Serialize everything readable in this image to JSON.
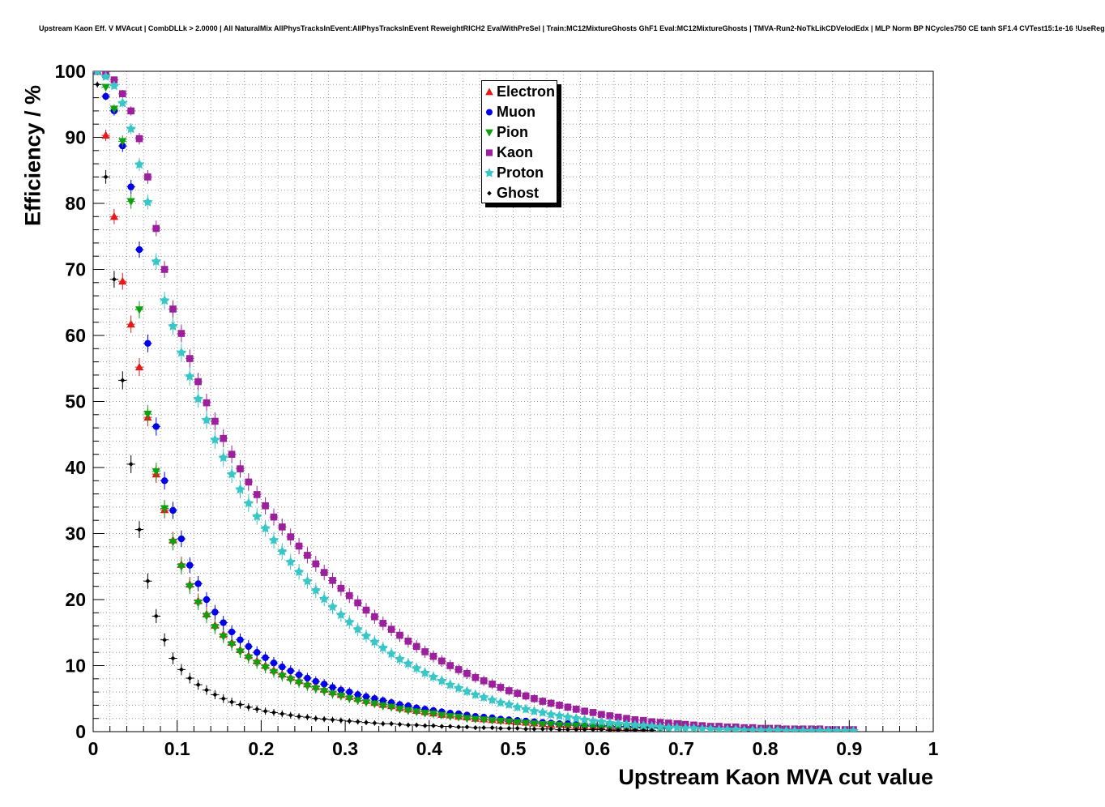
{
  "chart_data": {
    "type": "scatter",
    "title": "Upstream Kaon Eff. V MVAcut | CombDLLk > 2.0000 | All NaturalMix AllPhysTracksInEvent:AllPhysTracksInEvent ReweightRICH2 EvalWithPreSel | Train:MC12MixtureGhosts GhF1 Eval:MC12MixtureGhosts | TMVA-Run2-NoTkLikCDVelodEdx | MLP Norm BP NCycles750 CE tanh SF1.4 CVTest15:1e-16 !UseReg",
    "xlabel": "Upstream Kaon MVA cut value",
    "ylabel": "Efficiency / %",
    "xlim": [
      0,
      1
    ],
    "ylim": [
      0,
      100
    ],
    "grid": true,
    "grid_style": "dotted",
    "legend_position": "top-center",
    "x_tick_values": [
      0,
      0.1,
      0.2,
      0.3,
      0.4,
      0.5,
      0.6,
      0.7,
      0.8,
      0.9,
      1
    ],
    "x_tick_labels": [
      "0",
      "0.1",
      "0.2",
      "0.3",
      "0.4",
      "0.5",
      "0.6",
      "0.7",
      "0.8",
      "0.9",
      "1"
    ],
    "y_tick_values": [
      0,
      10,
      20,
      30,
      40,
      50,
      60,
      70,
      80,
      90,
      100
    ],
    "y_tick_labels": [
      "0",
      "10",
      "20",
      "30",
      "40",
      "50",
      "60",
      "70",
      "80",
      "90",
      "100"
    ],
    "x_grid_step": 0.02,
    "y_grid_step": 2,
    "x_start": 0.005,
    "x_step": 0.01,
    "series": [
      {
        "name": "Electron",
        "color": "#e41a1a",
        "marker": "triangle-up",
        "values": [
          100.0,
          90.3,
          78.0,
          68.2,
          61.7,
          55.2,
          47.6,
          39.0,
          33.6,
          29.0,
          25.3,
          22.3,
          19.8,
          17.8,
          16.1,
          14.7,
          13.5,
          12.4,
          11.5,
          10.7,
          10.0,
          9.3,
          8.7,
          8.2,
          7.7,
          7.2,
          6.8,
          6.4,
          6.0,
          5.6,
          5.3,
          5.0,
          4.7,
          4.4,
          4.1,
          3.9,
          3.6,
          3.4,
          3.2,
          3.0,
          2.8,
          2.6,
          2.5,
          2.3,
          2.2,
          2.0,
          1.9,
          1.8,
          1.7,
          1.6,
          1.5,
          1.4,
          1.3,
          1.2,
          1.1,
          1.1,
          1.0,
          0.9,
          0.9,
          0.8,
          0.8,
          0.7,
          0.7,
          0.6,
          0.6,
          0.6
        ]
      },
      {
        "name": "Muon",
        "color": "#0000e6",
        "marker": "circle",
        "values": [
          100.0,
          96.2,
          94.0,
          88.7,
          82.5,
          73.0,
          58.8,
          46.2,
          38.0,
          33.5,
          29.2,
          25.2,
          22.4,
          20.0,
          18.1,
          16.5,
          15.1,
          13.9,
          12.9,
          12.0,
          11.2,
          10.4,
          9.8,
          9.2,
          8.6,
          8.1,
          7.6,
          7.2,
          6.7,
          6.3,
          6.0,
          5.6,
          5.3,
          5.0,
          4.7,
          4.4,
          4.1,
          3.9,
          3.6,
          3.4,
          3.2,
          3.0,
          2.8,
          2.7,
          2.5,
          2.3,
          2.2,
          2.1,
          1.9,
          1.8,
          1.7,
          1.6,
          1.5,
          1.4,
          1.3,
          1.2,
          1.2,
          1.1,
          1.0,
          1.0,
          0.9,
          0.9,
          0.8,
          0.8,
          0.7,
          0.7,
          0.7,
          0.6,
          0.6
        ]
      },
      {
        "name": "Pion",
        "color": "#0fa00f",
        "marker": "triangle-down",
        "values": [
          100.0,
          97.6,
          94.3,
          89.4,
          80.3,
          63.9,
          48.1,
          39.4,
          33.8,
          28.7,
          25.0,
          22.0,
          19.5,
          17.5,
          15.8,
          14.4,
          13.2,
          12.1,
          11.2,
          10.4,
          9.7,
          9.0,
          8.4,
          7.9,
          7.4,
          6.9,
          6.5,
          6.1,
          5.7,
          5.4,
          5.0,
          4.7,
          4.4,
          4.2,
          3.9,
          3.7,
          3.4,
          3.2,
          3.0,
          2.8,
          2.7,
          2.5,
          2.3,
          2.2,
          2.0,
          1.9,
          1.8,
          1.7,
          1.6,
          1.5,
          1.4,
          1.3,
          1.2,
          1.1,
          1.1,
          1.0,
          0.9,
          0.9,
          0.8,
          0.8,
          0.7,
          0.7,
          0.6,
          0.6,
          0.6,
          0.5,
          0.5,
          0.5,
          0.5
        ]
      },
      {
        "name": "Kaon",
        "color": "#9c209c",
        "marker": "square",
        "values": [
          100.0,
          99.5,
          98.7,
          96.6,
          94.0,
          89.8,
          84.0,
          76.2,
          70.0,
          64.0,
          60.3,
          56.5,
          53.0,
          49.8,
          47.0,
          44.4,
          42.0,
          39.8,
          37.8,
          35.9,
          34.2,
          32.5,
          31.0,
          29.5,
          28.1,
          26.7,
          25.4,
          24.1,
          22.9,
          21.7,
          20.6,
          19.5,
          18.4,
          17.4,
          16.4,
          15.5,
          14.6,
          13.7,
          12.9,
          12.1,
          11.4,
          10.7,
          10.0,
          9.4,
          8.8,
          8.2,
          7.7,
          7.2,
          6.7,
          6.2,
          5.8,
          5.4,
          5.0,
          4.6,
          4.3,
          4.0,
          3.7,
          3.4,
          3.1,
          2.9,
          2.6,
          2.4,
          2.2,
          2.0,
          1.8,
          1.7,
          1.5,
          1.4,
          1.3,
          1.2,
          1.1,
          1.0,
          0.9,
          0.8,
          0.8,
          0.7,
          0.7,
          0.6,
          0.6,
          0.5,
          0.5,
          0.5,
          0.4,
          0.4,
          0.4,
          0.4,
          0.4,
          0.3,
          0.3,
          0.3,
          0.3
        ]
      },
      {
        "name": "Proton",
        "color": "#38c6c6",
        "marker": "star",
        "values": [
          100.0,
          99.2,
          97.8,
          95.2,
          91.3,
          85.9,
          80.2,
          71.2,
          65.3,
          61.4,
          57.4,
          53.8,
          50.4,
          47.2,
          44.2,
          41.5,
          39.0,
          36.7,
          34.6,
          32.6,
          30.8,
          29.0,
          27.3,
          25.7,
          24.2,
          22.8,
          21.4,
          20.1,
          18.9,
          17.7,
          16.6,
          15.5,
          14.5,
          13.6,
          12.7,
          11.8,
          11.0,
          10.3,
          9.6,
          8.9,
          8.3,
          7.7,
          7.1,
          6.6,
          6.1,
          5.6,
          5.2,
          4.8,
          4.4,
          4.1,
          3.7,
          3.4,
          3.1,
          2.9,
          2.6,
          2.4,
          2.2,
          2.0,
          1.8,
          1.6,
          1.5,
          1.3,
          1.2,
          1.1,
          1.0,
          0.9,
          0.8,
          0.7,
          0.6,
          0.6,
          0.5,
          0.5,
          0.4,
          0.4,
          0.3,
          0.3,
          0.3,
          0.2,
          0.2,
          0.2,
          0.2,
          0.2,
          0.1,
          0.1,
          0.1,
          0.1,
          0.1,
          0.1,
          0.1,
          0.1,
          0.1
        ]
      },
      {
        "name": "Ghost",
        "color": "#000000",
        "marker": "diamond",
        "values": [
          98.0,
          84.0,
          68.5,
          53.2,
          40.5,
          30.6,
          22.8,
          17.5,
          13.9,
          11.1,
          9.4,
          8.1,
          7.1,
          6.3,
          5.6,
          5.0,
          4.5,
          4.1,
          3.7,
          3.4,
          3.1,
          2.9,
          2.7,
          2.5,
          2.3,
          2.2,
          2.0,
          1.9,
          1.8,
          1.7,
          1.6,
          1.5,
          1.4,
          1.3,
          1.2,
          1.2,
          1.1,
          1.0,
          1.0,
          0.9,
          0.9,
          0.8,
          0.8,
          0.7,
          0.7,
          0.6,
          0.6,
          0.6,
          0.5,
          0.5,
          0.5,
          0.4,
          0.4,
          0.4,
          0.4,
          0.3,
          0.3,
          0.3,
          0.3,
          0.3,
          0.3,
          0.2,
          0.2,
          0.2,
          0.2,
          0.2,
          0.2
        ]
      }
    ]
  }
}
